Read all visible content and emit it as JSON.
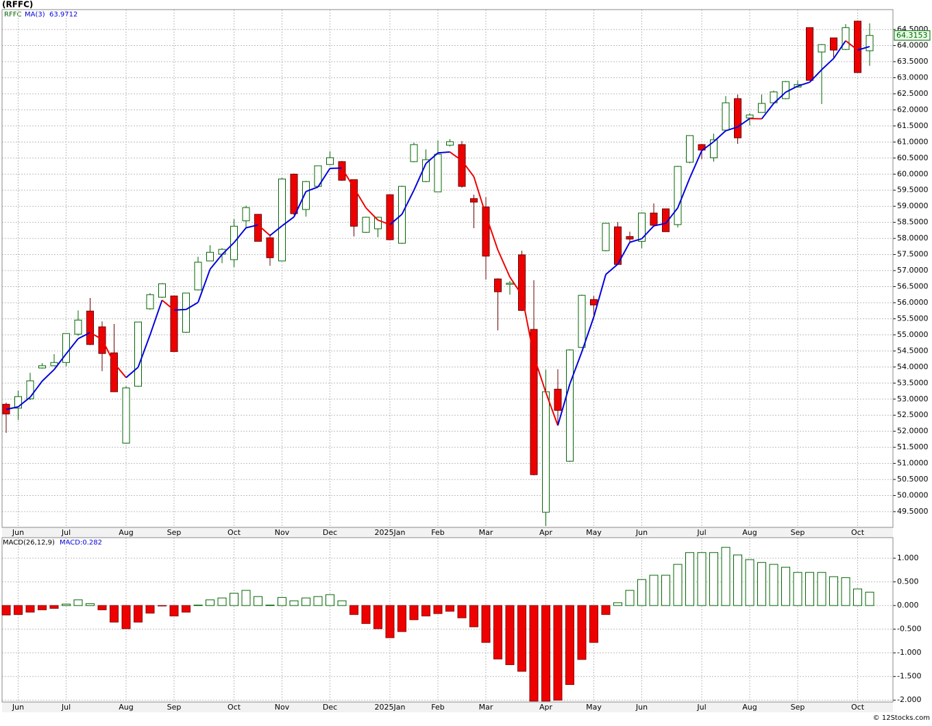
{
  "chart_data": [
    {
      "type": "candlestick",
      "title": "(RFFC)",
      "symbol": "RFFC",
      "ma_name": "MA(3)",
      "categories": [
        null,
        "Jun",
        null,
        null,
        null,
        "Jul",
        null,
        null,
        null,
        null,
        "Aug",
        null,
        null,
        null,
        "Sep",
        null,
        null,
        null,
        null,
        "Oct",
        null,
        null,
        null,
        "Nov",
        null,
        null,
        null,
        "Dec",
        null,
        null,
        null,
        null,
        "2025Jan",
        null,
        null,
        null,
        "Feb",
        null,
        null,
        null,
        "Mar",
        null,
        null,
        null,
        null,
        "Apr",
        null,
        null,
        null,
        "May",
        null,
        null,
        null,
        "Jun",
        null,
        null,
        null,
        null,
        "Jul",
        null,
        null,
        null,
        "Aug",
        null,
        null,
        null,
        "Sep",
        null,
        null,
        null,
        null,
        "Oct",
        null
      ],
      "open": [
        52.84,
        52.72,
        53.01,
        53.97,
        54.04,
        54.14,
        55.02,
        55.74,
        55.25,
        54.44,
        51.63,
        53.4,
        55.81,
        56.17,
        56.21,
        55.08,
        56.4,
        57.3,
        57.51,
        57.34,
        58.55,
        58.75,
        58.02,
        57.3,
        60.0,
        58.9,
        59.62,
        60.3,
        60.39,
        59.83,
        58.19,
        58.3,
        59.36,
        57.85,
        60.39,
        59.77,
        59.45,
        60.9,
        60.92,
        59.24,
        58.98,
        56.74,
        56.57,
        57.49,
        55.17,
        49.48,
        53.31,
        51.07,
        54.61,
        56.1,
        57.62,
        58.36,
        58.06,
        57.91,
        58.79,
        58.92,
        58.43,
        60.37,
        60.92,
        60.51,
        61.37,
        62.35,
        61.75,
        61.92,
        62.22,
        62.35,
        62.71,
        64.56,
        63.8,
        64.24,
        63.88,
        64.76,
        63.84
      ],
      "high": [
        52.89,
        53.27,
        53.82,
        54.12,
        54.4,
        55.04,
        55.76,
        56.15,
        55.42,
        55.34,
        53.4,
        55.4,
        56.3,
        56.61,
        56.21,
        56.3,
        57.43,
        57.79,
        57.7,
        58.6,
        59.02,
        58.75,
        58.13,
        59.88,
        60.02,
        59.79,
        60.26,
        60.71,
        60.41,
        59.83,
        58.68,
        58.68,
        59.36,
        59.64,
        60.98,
        60.77,
        61.05,
        61.09,
        61.03,
        59.36,
        59.28,
        56.76,
        56.68,
        57.62,
        56.7,
        53.91,
        53.93,
        54.55,
        56.25,
        56.21,
        58.47,
        58.51,
        58.21,
        58.81,
        59.09,
        58.92,
        60.26,
        61.2,
        60.94,
        61.26,
        62.43,
        62.48,
        61.9,
        62.48,
        62.6,
        62.9,
        62.92,
        64.56,
        64.05,
        64.24,
        64.67,
        64.78,
        64.69
      ],
      "low": [
        51.95,
        52.35,
        52.97,
        53.95,
        54.02,
        54.02,
        54.97,
        54.68,
        53.87,
        53.23,
        51.61,
        53.38,
        55.78,
        56.15,
        54.48,
        55.06,
        56.38,
        57.3,
        57.23,
        57.11,
        58.32,
        57.91,
        57.15,
        57.3,
        58.73,
        58.68,
        59.6,
        60.28,
        59.79,
        58.06,
        58.17,
        58.04,
        57.96,
        57.83,
        60.37,
        59.75,
        59.45,
        60.86,
        59.58,
        58.32,
        56.72,
        55.14,
        56.25,
        55.74,
        50.63,
        49.05,
        52.2,
        51.05,
        54.59,
        55.61,
        57.6,
        57.19,
        57.89,
        57.7,
        58.41,
        58.21,
        58.34,
        60.34,
        60.46,
        60.39,
        61.37,
        60.94,
        61.52,
        61.92,
        62.2,
        62.33,
        62.69,
        62.92,
        62.18,
        63.58,
        63.86,
        63.16,
        63.37
      ],
      "close": [
        52.54,
        53.08,
        53.57,
        54.04,
        54.14,
        55.04,
        55.46,
        54.7,
        54.42,
        53.23,
        53.35,
        55.4,
        56.25,
        56.59,
        54.48,
        56.3,
        57.26,
        57.57,
        57.66,
        58.38,
        58.96,
        57.91,
        57.4,
        59.85,
        58.77,
        59.77,
        60.26,
        60.51,
        59.81,
        58.38,
        58.66,
        58.66,
        57.96,
        59.62,
        60.92,
        60.45,
        60.62,
        61.01,
        59.62,
        59.13,
        57.45,
        56.34,
        56.61,
        55.76,
        50.65,
        53.23,
        52.65,
        54.53,
        56.23,
        55.93,
        58.47,
        57.19,
        57.98,
        58.79,
        58.41,
        58.21,
        60.24,
        61.2,
        60.75,
        61.07,
        62.22,
        61.13,
        61.84,
        62.2,
        62.56,
        62.88,
        62.79,
        62.92,
        64.03,
        63.86,
        64.56,
        63.16,
        64.3153
      ],
      "ma": [
        52.68,
        52.76,
        53.06,
        53.56,
        53.92,
        54.41,
        54.88,
        55.07,
        54.86,
        54.12,
        53.67,
        53.99,
        55.0,
        56.08,
        55.77,
        55.79,
        56.01,
        57.04,
        57.5,
        57.87,
        58.33,
        58.42,
        58.09,
        58.39,
        58.67,
        59.46,
        59.6,
        60.18,
        60.19,
        59.57,
        58.95,
        58.57,
        58.43,
        58.75,
        59.5,
        60.33,
        60.66,
        60.69,
        60.42,
        59.92,
        58.73,
        57.64,
        56.8,
        56.24,
        54.34,
        53.21,
        52.18,
        53.47,
        54.47,
        55.56,
        56.88,
        57.2,
        57.88,
        57.99,
        58.39,
        58.47,
        58.95,
        59.88,
        60.73,
        61.01,
        61.35,
        61.47,
        61.73,
        61.72,
        62.2,
        62.55,
        62.74,
        62.86,
        63.25,
        63.6,
        64.15,
        63.86,
        63.9712
      ],
      "up_color": "#006400",
      "down_color": "#ee0000",
      "ma_up_color": "#0000dd",
      "ma_down_color": "#ee0000",
      "ylim": [
        49.01,
        65.12
      ],
      "yticks": [
        {
          "value": 49.5,
          "label": "49.5000"
        },
        {
          "value": 50,
          "label": "50.0000"
        },
        {
          "value": 50.5,
          "label": "50.5000"
        },
        {
          "value": 51,
          "label": "51.0000"
        },
        {
          "value": 51.5,
          "label": "51.5000"
        },
        {
          "value": 52,
          "label": "52.0000"
        },
        {
          "value": 52.5,
          "label": "52.5000"
        },
        {
          "value": 53,
          "label": "53.0000"
        },
        {
          "value": 53.5,
          "label": "53.5000"
        },
        {
          "value": 54,
          "label": "54.0000"
        },
        {
          "value": 54.5,
          "label": "54.5000"
        },
        {
          "value": 55,
          "label": "55.0000"
        },
        {
          "value": 55.5,
          "label": "55.5000"
        },
        {
          "value": 56,
          "label": "56.0000"
        },
        {
          "value": 56.5,
          "label": "56.5000"
        },
        {
          "value": 57,
          "label": "57.0000"
        },
        {
          "value": 57.5,
          "label": "57.5000"
        },
        {
          "value": 58,
          "label": "58.0000"
        },
        {
          "value": 58.5,
          "label": "58.5000"
        },
        {
          "value": 59,
          "label": "59.0000"
        },
        {
          "value": 59.5,
          "label": "59.5000"
        },
        {
          "value": 60,
          "label": "60.0000"
        },
        {
          "value": 60.5,
          "label": "60.5000"
        },
        {
          "value": 61,
          "label": "61.0000"
        },
        {
          "value": 61.5,
          "label": "61.5000"
        },
        {
          "value": 62,
          "label": "62.0000"
        },
        {
          "value": 62.5,
          "label": "62.5000"
        },
        {
          "value": 63,
          "label": "63.0000"
        },
        {
          "value": 63.5,
          "label": "63.5000"
        },
        {
          "value": 64,
          "label": "64.0000"
        },
        {
          "value": 64.5,
          "label": "64.5000"
        }
      ],
      "grid": true
    },
    {
      "type": "bar",
      "title": "MACD(26,12,9)",
      "value_prefix": "MACD:",
      "categories": [
        null,
        "Jun",
        null,
        null,
        null,
        "Jul",
        null,
        null,
        null,
        null,
        "Aug",
        null,
        null,
        null,
        "Sep",
        null,
        null,
        null,
        null,
        "Oct",
        null,
        null,
        null,
        "Nov",
        null,
        null,
        null,
        "Dec",
        null,
        null,
        null,
        null,
        "2025Jan",
        null,
        null,
        null,
        "Feb",
        null,
        null,
        null,
        "Mar",
        null,
        null,
        null,
        null,
        "Apr",
        null,
        null,
        null,
        "May",
        null,
        null,
        null,
        "Jun",
        null,
        null,
        null,
        null,
        "Jul",
        null,
        null,
        null,
        "Aug",
        null,
        null,
        null,
        "Sep",
        null,
        null,
        null,
        null,
        "Oct",
        null
      ],
      "values": [
        -0.2,
        -0.19,
        -0.14,
        -0.09,
        -0.06,
        0.03,
        0.12,
        0.04,
        -0.09,
        -0.35,
        -0.49,
        -0.35,
        -0.16,
        -0.01,
        -0.22,
        -0.14,
        0.01,
        0.12,
        0.16,
        0.26,
        0.32,
        0.19,
        0.01,
        0.17,
        0.1,
        0.16,
        0.19,
        0.23,
        0.1,
        -0.19,
        -0.38,
        -0.49,
        -0.68,
        -0.55,
        -0.3,
        -0.22,
        -0.17,
        -0.12,
        -0.26,
        -0.45,
        -0.78,
        -1.13,
        -1.25,
        -1.39,
        -2.02,
        -2.02,
        -2.0,
        -1.67,
        -1.14,
        -0.78,
        -0.19,
        0.06,
        0.32,
        0.55,
        0.64,
        0.64,
        0.87,
        1.12,
        1.12,
        1.12,
        1.23,
        1.07,
        0.97,
        0.91,
        0.87,
        0.81,
        0.7,
        0.7,
        0.7,
        0.61,
        0.59,
        0.35,
        0.282
      ],
      "up_color": "#006400",
      "down_color": "#ee0000",
      "ylim": [
        -2.04,
        1.435
      ],
      "yticks": [
        {
          "value": 1,
          "label": "1.000"
        },
        {
          "value": 0.5,
          "label": "0.500"
        },
        {
          "value": 0,
          "label": "0.000"
        },
        {
          "value": -0.5,
          "label": "-0.500"
        },
        {
          "value": -1,
          "label": "-1.000"
        },
        {
          "value": -1.5,
          "label": "-1.500"
        },
        {
          "value": -2,
          "label": "-2.000"
        }
      ],
      "grid": true
    }
  ],
  "footer": "© 12Stocks.com"
}
